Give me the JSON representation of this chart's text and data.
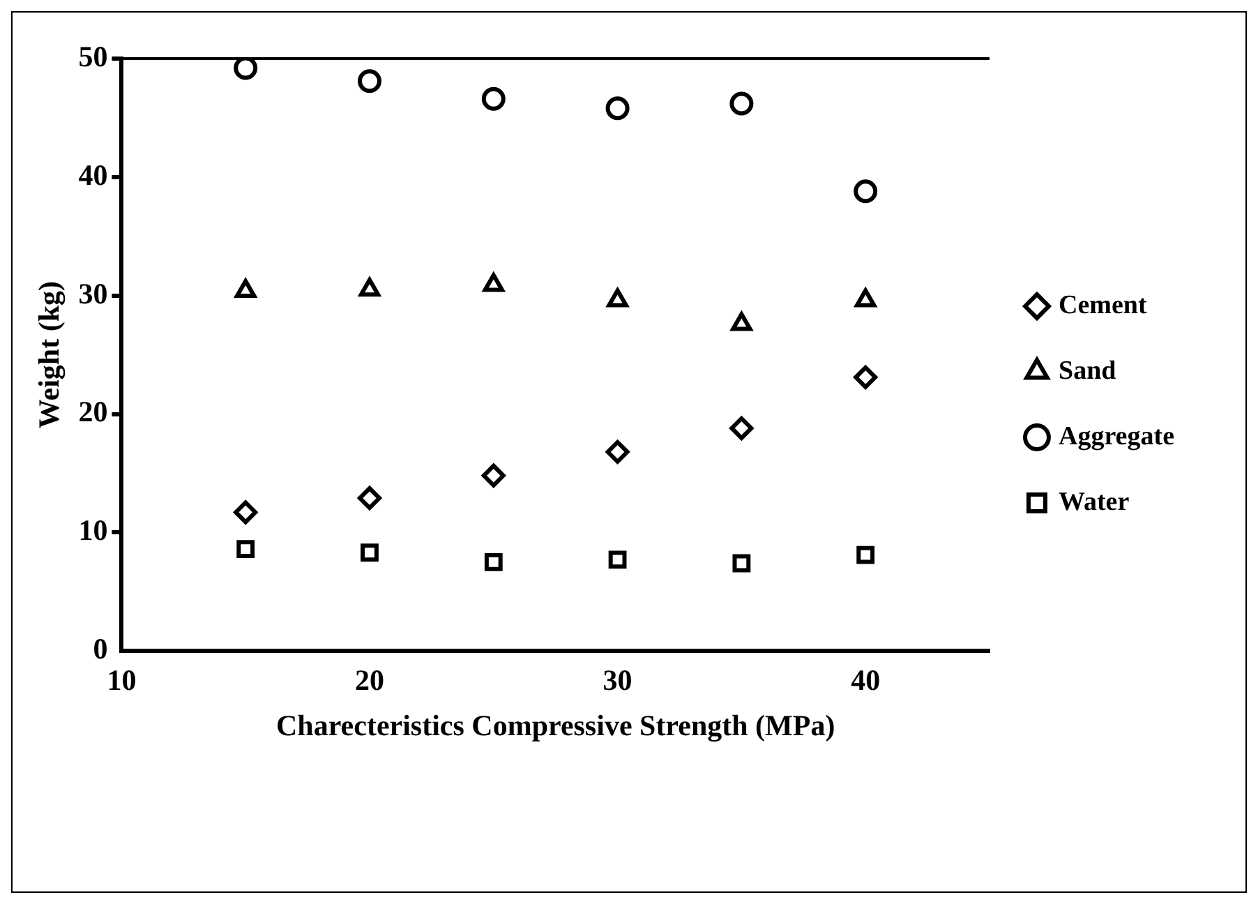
{
  "chart_data": {
    "type": "scatter",
    "xlabel": "Charecteristics Compressive Strength (MPa)",
    "ylabel": "Weight (kg)",
    "x": [
      15,
      20,
      25,
      30,
      35,
      40
    ],
    "series": [
      {
        "name": "Cement",
        "color": "#000000",
        "marker": "diamond",
        "values": [
          11.7,
          12.9,
          14.8,
          16.8,
          18.8,
          23.1
        ]
      },
      {
        "name": "Sand",
        "color": "#000000",
        "marker": "triangle",
        "values": [
          30.4,
          30.5,
          30.9,
          29.6,
          27.6,
          29.6
        ]
      },
      {
        "name": "Aggregate",
        "color": "#000000",
        "marker": "circle",
        "values": [
          49.2,
          48.1,
          46.6,
          45.8,
          46.2,
          38.8
        ]
      },
      {
        "name": "Water",
        "color": "#000000",
        "marker": "square",
        "values": [
          8.6,
          8.3,
          7.5,
          7.7,
          7.4,
          8.1
        ]
      }
    ],
    "xlim": [
      10,
      45
    ],
    "xticks": [
      10,
      20,
      30,
      40
    ],
    "ylim": [
      0,
      50
    ],
    "yticks": [
      0,
      10,
      20,
      30,
      40,
      50
    ],
    "grid": false,
    "legend": "right"
  }
}
